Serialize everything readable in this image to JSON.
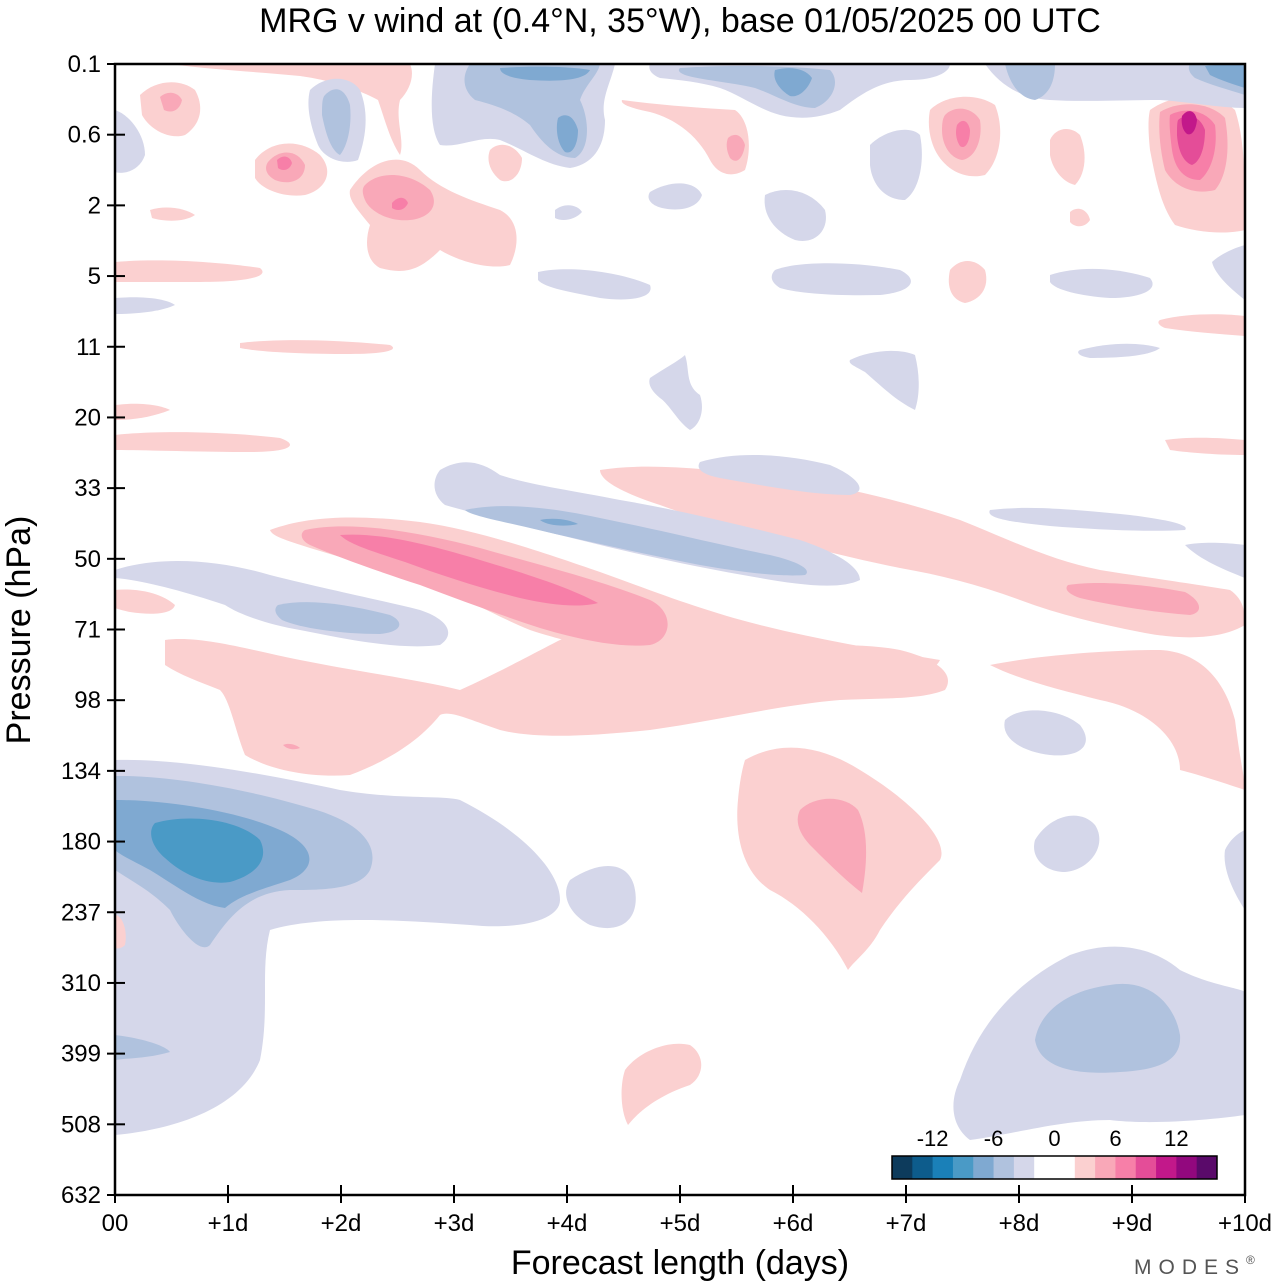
{
  "chart_data": {
    "type": "heatmap",
    "title": "MRG v wind at (0.4°N, 35°W),  base 01/05/2025  00 UTC",
    "xlabel": "Forecast length (days)",
    "ylabel": "Pressure (hPa)",
    "x_ticks": [
      "00",
      "+1d",
      "+2d",
      "+3d",
      "+4d",
      "+5d",
      "+6d",
      "+7d",
      "+8d",
      "+9d",
      "+10d"
    ],
    "y_ticks": [
      "0.1",
      "0.6",
      "2",
      "5",
      "11",
      "20",
      "33",
      "50",
      "71",
      "98",
      "134",
      "180",
      "237",
      "310",
      "399",
      "508",
      "632"
    ],
    "xlim": [
      0,
      10
    ],
    "colorbar": {
      "labels": [
        "-12",
        "-6",
        "0",
        "6",
        "12"
      ],
      "levels": [
        -16,
        -14,
        -12,
        -10,
        -8,
        -6,
        -4,
        -2,
        2,
        4,
        6,
        8,
        10,
        12,
        14,
        16
      ],
      "colors": [
        "#0d3b5c",
        "#0d5c8c",
        "#1a80b8",
        "#4a9ac6",
        "#7fa9d1",
        "#b0c2de",
        "#d5d7ea",
        "#ffffff",
        "#ffffff",
        "#fbd0d0",
        "#f9a8b8",
        "#f77fa8",
        "#e44d98",
        "#c2188a",
        "#92087e",
        "#5a0a6a"
      ]
    },
    "features": [
      {
        "name": "blue-180hPa-day1",
        "sign": "negative",
        "peak": -12,
        "x": 1.0,
        "y": "180"
      },
      {
        "name": "pink-50hPa-day3",
        "sign": "positive",
        "peak": 10,
        "x": 3.2,
        "y": "50"
      },
      {
        "name": "blue-41hPa-day4",
        "sign": "negative",
        "peak": -8,
        "x": 4.0,
        "y": "33"
      },
      {
        "name": "blue-71hPa-day2",
        "sign": "negative",
        "peak": -6,
        "x": 2.0,
        "y": "71"
      },
      {
        "name": "pink-98hPa-day1",
        "sign": "positive",
        "peak": 4,
        "x": 1.5,
        "y": "98"
      },
      {
        "name": "pink-180hPa-day6",
        "sign": "positive",
        "peak": 6,
        "x": 6.3,
        "y": "180"
      },
      {
        "name": "blue-399hPa-day9",
        "sign": "negative",
        "peak": -6,
        "x": 9.0,
        "y": "399"
      },
      {
        "name": "pink-0.6hPa-day9",
        "sign": "positive",
        "peak": 14,
        "x": 9.5,
        "y": "0.6"
      },
      {
        "name": "pink-60hPa-day9",
        "sign": "positive",
        "peak": 6,
        "x": 9.3,
        "y": "50"
      }
    ]
  },
  "watermark": "MODES",
  "watermark_mark": "®"
}
